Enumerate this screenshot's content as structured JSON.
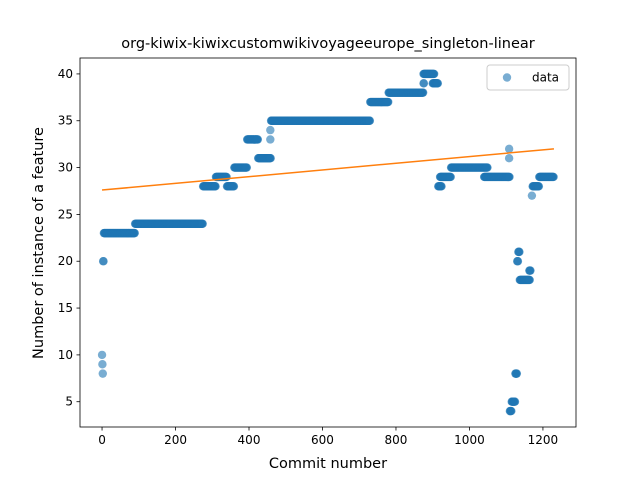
{
  "chart_data": {
    "type": "scatter",
    "title": "org-kiwix-kiwixcustomwikivoyageeurope_singleton-linear",
    "xlabel": "Commit number",
    "ylabel": "Number of instance of a feature",
    "xlim": [
      -60,
      1290
    ],
    "ylim": [
      2.3,
      41.7
    ],
    "xticks": [
      0,
      200,
      400,
      600,
      800,
      1000,
      1200
    ],
    "yticks": [
      5,
      10,
      15,
      20,
      25,
      30,
      35,
      40
    ],
    "legend": {
      "position": "top-right",
      "entries": [
        "data"
      ]
    },
    "colors": {
      "points": "#1f77b4",
      "fit": "#ff7f0e"
    },
    "series": [
      {
        "name": "data",
        "kind": "points",
        "segments": [
          [
            0,
            1,
            10
          ],
          [
            1,
            2,
            9
          ],
          [
            2,
            3,
            8
          ],
          [
            3,
            5,
            20
          ],
          [
            5,
            90,
            23
          ],
          [
            90,
            275,
            24
          ],
          [
            275,
            310,
            28
          ],
          [
            310,
            340,
            29
          ],
          [
            340,
            360,
            28
          ],
          [
            360,
            395,
            30
          ],
          [
            395,
            425,
            33
          ],
          [
            425,
            460,
            31
          ],
          [
            458,
            459,
            34
          ],
          [
            458,
            459,
            33
          ],
          [
            460,
            730,
            35
          ],
          [
            730,
            780,
            37
          ],
          [
            780,
            875,
            38
          ],
          [
            875,
            877,
            39
          ],
          [
            875,
            905,
            40
          ],
          [
            900,
            915,
            39
          ],
          [
            915,
            925,
            28
          ],
          [
            920,
            950,
            29
          ],
          [
            950,
            1050,
            30
          ],
          [
            1040,
            1055,
            29
          ],
          [
            1055,
            1110,
            29
          ],
          [
            1108,
            1109,
            32
          ],
          [
            1108,
            1109,
            31
          ],
          [
            1110,
            1115,
            4
          ],
          [
            1115,
            1125,
            5
          ],
          [
            1125,
            1130,
            8
          ],
          [
            1130,
            1133,
            20
          ],
          [
            1133,
            1137,
            21
          ],
          [
            1137,
            1165,
            18
          ],
          [
            1163,
            1167,
            19
          ],
          [
            1170,
            1171,
            27
          ],
          [
            1172,
            1190,
            28
          ],
          [
            1190,
            1230,
            29
          ]
        ]
      },
      {
        "name": "",
        "kind": "line",
        "x": [
          0,
          1230
        ],
        "y": [
          27.6,
          32.0
        ]
      }
    ]
  }
}
